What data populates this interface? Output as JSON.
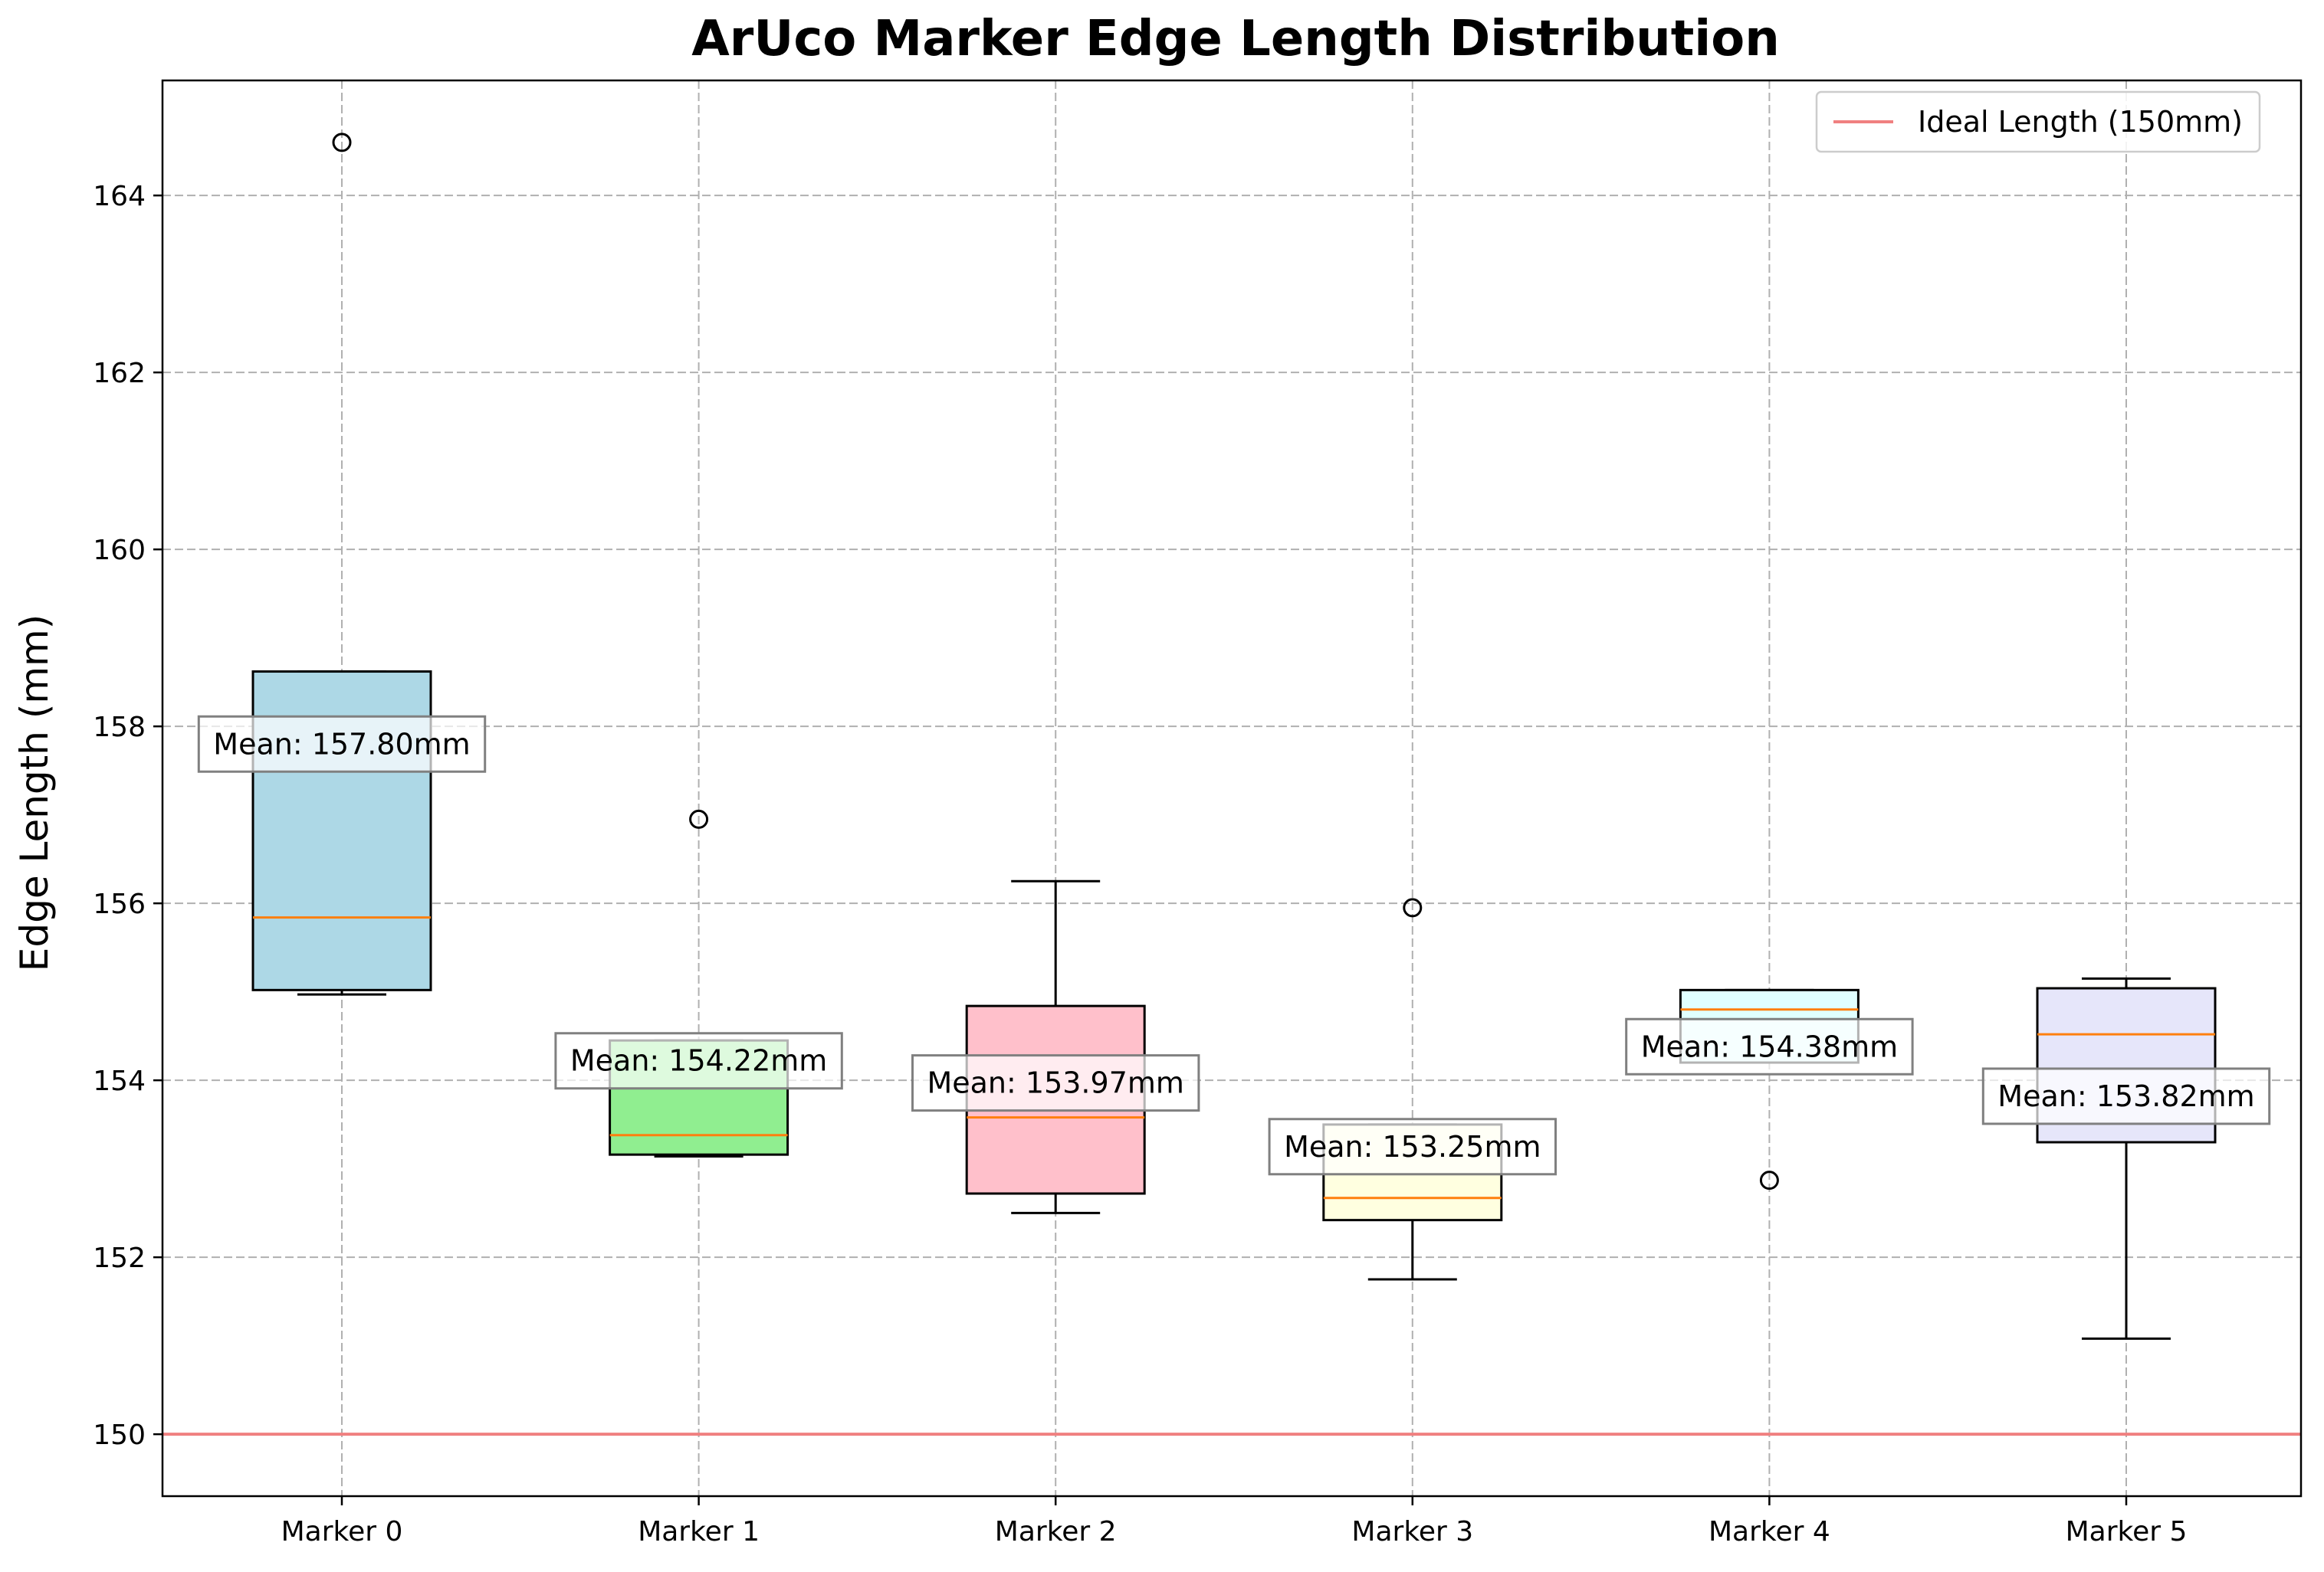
{
  "chart_data": {
    "type": "box",
    "title": "ArUco Marker Edge Length Distribution",
    "xlabel": "",
    "ylabel": "Edge Length (mm)",
    "ylim": [
      149.3,
      165.3
    ],
    "yticks": [
      150,
      152,
      154,
      156,
      158,
      160,
      162,
      164
    ],
    "grid": true,
    "legend": {
      "placement": "top-right",
      "entries": [
        {
          "label": "Ideal Length (150mm)",
          "color": "#f08080",
          "kind": "line"
        }
      ]
    },
    "reference_line": {
      "y": 150,
      "label": "Ideal Length (150mm)",
      "color": "#f08080"
    },
    "median_color": "#ff7f0e",
    "categories": [
      "Marker 0",
      "Marker 1",
      "Marker 2",
      "Marker 3",
      "Marker 4",
      "Marker 5"
    ],
    "boxes": [
      {
        "name": "Marker 0",
        "color": "#add8e6",
        "whisker_low": 154.97,
        "q1": 155.02,
        "median": 155.84,
        "q3": 158.62,
        "whisker_high": 158.62,
        "outliers": [
          164.6
        ],
        "mean": 157.8,
        "mean_label": "Mean: 157.80mm"
      },
      {
        "name": "Marker 1",
        "color": "#90ee90",
        "whisker_low": 153.14,
        "q1": 153.16,
        "median": 153.38,
        "q3": 154.45,
        "whisker_high": 154.45,
        "outliers": [
          156.95
        ],
        "mean": 154.22,
        "mean_label": "Mean: 154.22mm"
      },
      {
        "name": "Marker 2",
        "color": "#ffc0cb",
        "whisker_low": 152.5,
        "q1": 152.72,
        "median": 153.58,
        "q3": 154.84,
        "whisker_high": 156.25,
        "outliers": [],
        "mean": 153.97,
        "mean_label": "Mean: 153.97mm"
      },
      {
        "name": "Marker 3",
        "color": "#ffffe0",
        "whisker_low": 151.75,
        "q1": 152.42,
        "median": 152.67,
        "q3": 153.5,
        "whisker_high": 153.5,
        "outliers": [
          155.95
        ],
        "mean": 153.25,
        "mean_label": "Mean: 153.25mm"
      },
      {
        "name": "Marker 4",
        "color": "#e0ffff",
        "whisker_low": 154.2,
        "q1": 154.2,
        "median": 154.8,
        "q3": 155.02,
        "whisker_high": 155.02,
        "outliers": [
          152.87
        ],
        "mean": 154.38,
        "mean_label": "Mean: 154.38mm"
      },
      {
        "name": "Marker 5",
        "color": "#e6e6fa",
        "whisker_low": 151.08,
        "q1": 153.3,
        "median": 154.52,
        "q3": 155.04,
        "whisker_high": 155.15,
        "outliers": [],
        "mean": 153.82,
        "mean_label": "Mean: 153.82mm"
      }
    ]
  }
}
